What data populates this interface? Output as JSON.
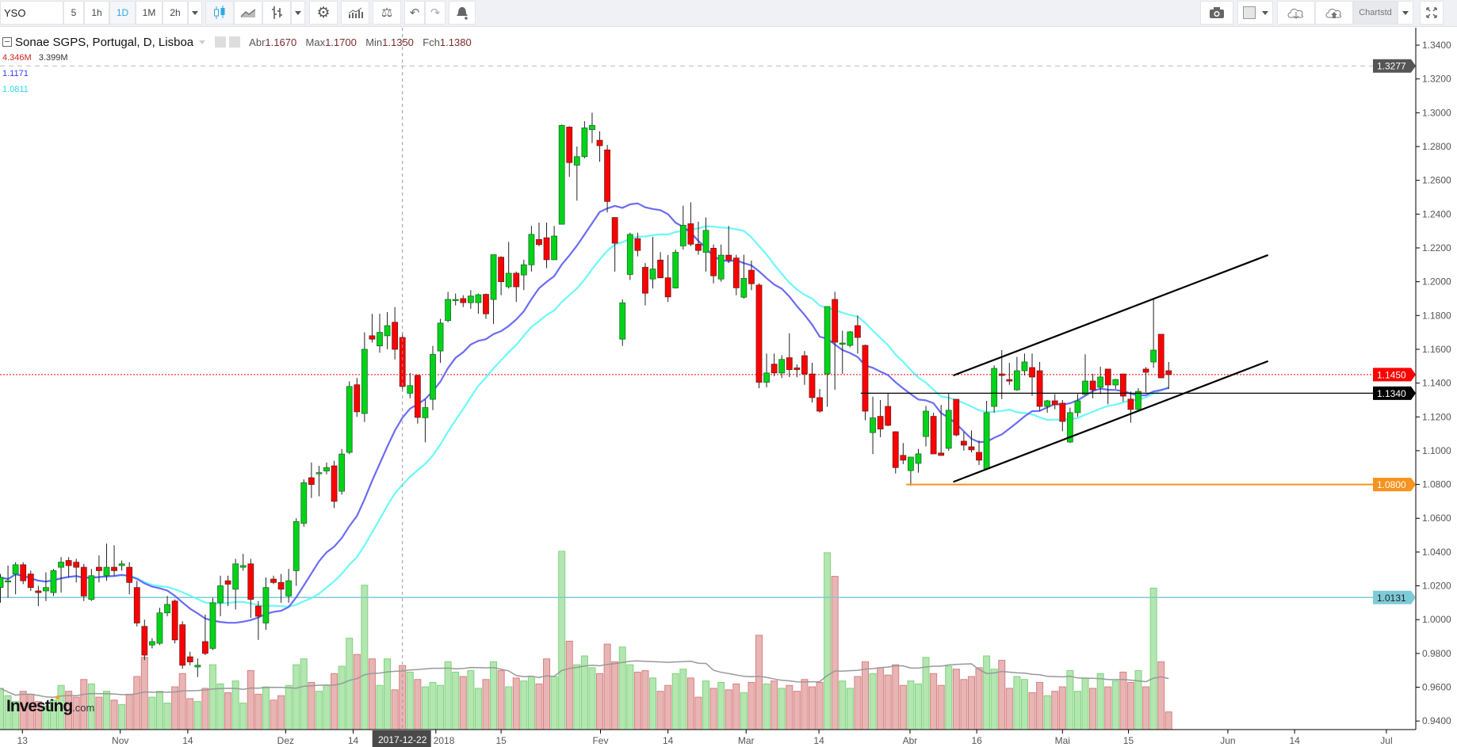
{
  "toolbar": {
    "symbol": "YSO",
    "intervals": [
      "5",
      "1h",
      "1D",
      "1M",
      "2h"
    ],
    "active_interval": "1D",
    "template_label": "Chartstd",
    "icons": [
      "candlestick-icon",
      "line-chart-icon",
      "bar-chart-icon",
      "gear-icon",
      "indicators-icon",
      "compare-scale-icon",
      "undo-icon",
      "redo-icon",
      "alert-icon",
      "camera-icon",
      "color-square-icon",
      "cloud-download-icon",
      "cloud-upload-icon",
      "fullscreen-icon"
    ]
  },
  "legend": {
    "title": "Sonae SGPS, Portugal, D, Lisboa",
    "open_label": "Abr",
    "open": "1.1670",
    "high_label": "Max",
    "high": "1.1700",
    "low_label": "Min",
    "low": "1.1350",
    "close_label": "Fch",
    "close": "1.1380",
    "volume": "4.346M",
    "volume_ma": "3.399M",
    "ma_fast": "1.1171",
    "ma_slow": "1.0811"
  },
  "crosshair": {
    "date_label": "2017-12-22",
    "bar": 53
  },
  "watermark": {
    "brand": "Investing",
    "suffix": ".com"
  },
  "colors": {
    "up": "#00d41a",
    "down": "#ff0000",
    "ma_fast": "#5b5bf5",
    "ma_slow": "#5cf7f7",
    "vol_up": "#b3e6b1",
    "vol_down": "#e8b5b5",
    "orange": "#f7931e",
    "cyan_line": "#7ecbd8"
  },
  "chart_data": {
    "type": "candlestick",
    "title": "Sonae SGPS, Portugal, D, Lisboa",
    "ylim": [
      0.93,
      1.355
    ],
    "y_ticks": [
      "1.3400",
      "1.3200",
      "1.3000",
      "1.2800",
      "1.2600",
      "1.2400",
      "1.2200",
      "1.2000",
      "1.1800",
      "1.1600",
      "1.1400",
      "1.1200",
      "1.1000",
      "1.0800",
      "1.0600",
      "1.0400",
      "1.0200",
      "1.0000",
      "0.9800",
      "0.9600",
      "0.9400"
    ],
    "x_ticks": [
      {
        "label": "13",
        "bar": 2.9
      },
      {
        "label": "Nov",
        "bar": 15.8
      },
      {
        "label": "14",
        "bar": 24.7
      },
      {
        "label": "Dez",
        "bar": 37.6
      },
      {
        "label": "14",
        "bar": 46.5
      },
      {
        "label": "2018",
        "bar": 57.4
      },
      {
        "label": "15",
        "bar": 66
      },
      {
        "label": "Fev",
        "bar": 79.1
      },
      {
        "label": "14",
        "bar": 88
      },
      {
        "label": "Mar",
        "bar": 98.3
      },
      {
        "label": "14",
        "bar": 107.9
      },
      {
        "label": "Abr",
        "bar": 119.9
      },
      {
        "label": "16",
        "bar": 128.7
      },
      {
        "label": "Mai",
        "bar": 140
      },
      {
        "label": "15",
        "bar": 148.7
      },
      {
        "label": "Jun",
        "bar": 161.8
      },
      {
        "label": "14",
        "bar": 170.6
      },
      {
        "label": "Jul",
        "bar": 182.7
      }
    ],
    "bars_ohlcv_millions": [
      [
        1.019,
        1.027,
        1.01,
        1.025,
        2.8
      ],
      [
        1.023,
        1.032,
        1.013,
        1.023,
        2.3
      ],
      [
        1.027,
        1.034,
        1.015,
        1.0325,
        1.9
      ],
      [
        1.0325,
        1.034,
        1.021,
        1.023,
        2.6
      ],
      [
        1.027,
        1.029,
        1.017,
        1.019,
        2.4
      ],
      [
        1.017,
        1.02,
        1.008,
        1.016,
        1.9
      ],
      [
        1.017,
        1.028,
        1.011,
        1.019,
        1.6
      ],
      [
        1.016,
        1.03,
        1.014,
        1.029,
        2.0
      ],
      [
        1.031,
        1.037,
        1.016,
        1.034,
        3.0
      ],
      [
        1.035,
        1.037,
        1.025,
        1.032,
        2.6
      ],
      [
        1.034,
        1.036,
        1.022,
        1.031,
        2.2
      ],
      [
        1.031,
        1.033,
        1.011,
        1.014,
        3.4
      ],
      [
        1.012,
        1.03,
        1.011,
        1.026,
        3.1
      ],
      [
        1.031,
        1.038,
        1.022,
        1.029,
        2.2
      ],
      [
        1.026,
        1.045,
        1.023,
        1.031,
        2.6
      ],
      [
        1.031,
        1.044,
        1.026,
        1.029,
        2.0
      ],
      [
        1.032,
        1.035,
        1.029,
        1.033,
        1.7
      ],
      [
        1.031,
        1.034,
        1.015,
        1.022,
        2.4
      ],
      [
        1.019,
        1.023,
        0.996,
        0.998,
        3.6
      ],
      [
        0.996,
        1.0,
        0.976,
        0.979,
        4.9
      ],
      [
        0.985,
        0.989,
        0.983,
        0.987,
        2.2
      ],
      [
        0.986,
        1.007,
        0.985,
        1.004,
        2.6
      ],
      [
        1.004,
        1.014,
        1.002,
        1.009,
        1.8
      ],
      [
        1.011,
        1.012,
        0.986,
        0.988,
        2.9
      ],
      [
        0.997,
        0.999,
        0.971,
        0.973,
        3.8
      ],
      [
        0.978,
        0.981,
        0.973,
        0.975,
        2.1
      ],
      [
        0.972,
        0.977,
        0.966,
        0.973,
        1.9
      ],
      [
        0.987,
        1.003,
        0.979,
        0.98,
        2.8
      ],
      [
        0.983,
        1.013,
        0.982,
        1.01,
        4.4
      ],
      [
        1.01,
        1.026,
        1.002,
        1.02,
        3.1
      ],
      [
        1.023,
        1.026,
        1.008,
        1.021,
        2.5
      ],
      [
        1.018,
        1.036,
        1.006,
        1.033,
        3.3
      ],
      [
        1.031,
        1.039,
        1.029,
        1.032,
        1.8
      ],
      [
        1.033,
        1.036,
        1.001,
        1.012,
        4.0
      ],
      [
        1.008,
        1.011,
        0.988,
        1.002,
        2.4
      ],
      [
        0.998,
        1.025,
        0.994,
        1.019,
        2.9
      ],
      [
        1.024,
        1.026,
        1.021,
        1.022,
        2.0
      ],
      [
        1.022,
        1.027,
        1.01,
        1.018,
        2.3
      ],
      [
        1.014,
        1.03,
        1.01,
        1.023,
        3.0
      ],
      [
        1.029,
        1.06,
        1.02,
        1.058,
        4.4
      ],
      [
        1.057,
        1.083,
        1.055,
        1.081,
        4.8
      ],
      [
        1.084,
        1.093,
        1.072,
        1.08,
        3.2
      ],
      [
        1.087,
        1.091,
        1.073,
        1.087,
        2.6
      ],
      [
        1.088,
        1.093,
        1.086,
        1.09,
        3.0
      ],
      [
        1.091,
        1.094,
        1.066,
        1.07,
        3.8
      ],
      [
        1.076,
        1.101,
        1.074,
        1.098,
        4.3
      ],
      [
        1.099,
        1.141,
        1.098,
        1.138,
        6.2
      ],
      [
        1.139,
        1.143,
        1.12,
        1.123,
        5.1
      ],
      [
        1.122,
        1.17,
        1.117,
        1.16,
        9.8
      ],
      [
        1.168,
        1.181,
        1.164,
        1.166,
        4.8
      ],
      [
        1.162,
        1.181,
        1.158,
        1.17,
        3.0
      ],
      [
        1.168,
        1.182,
        1.16,
        1.174,
        4.8
      ],
      [
        1.176,
        1.185,
        1.154,
        1.16,
        2.7
      ],
      [
        1.167,
        1.17,
        1.135,
        1.138,
        4.346
      ],
      [
        1.134,
        1.146,
        1.131,
        1.1385,
        3.9
      ],
      [
        1.1445,
        1.145,
        1.116,
        1.1197,
        3.4
      ],
      [
        1.1195,
        1.1305,
        1.105,
        1.1255,
        2.9
      ],
      [
        1.1304,
        1.162,
        1.124,
        1.157,
        3.2
      ],
      [
        1.159,
        1.178,
        1.152,
        1.1755,
        3.0
      ],
      [
        1.177,
        1.194,
        1.176,
        1.1895,
        4.6
      ],
      [
        1.1895,
        1.193,
        1.186,
        1.1895,
        3.9
      ],
      [
        1.19,
        1.192,
        1.185,
        1.1876,
        3.6
      ],
      [
        1.1876,
        1.195,
        1.184,
        1.1915,
        4.0
      ],
      [
        1.1876,
        1.193,
        1.181,
        1.1923,
        2.8
      ],
      [
        1.1925,
        1.193,
        1.178,
        1.181,
        3.4
      ],
      [
        1.1895,
        1.216,
        1.175,
        1.216,
        4.6
      ],
      [
        1.2145,
        1.215,
        1.192,
        1.2,
        4.0
      ],
      [
        1.197,
        1.2235,
        1.196,
        1.205,
        2.9
      ],
      [
        1.205,
        1.206,
        1.188,
        1.197,
        3.5
      ],
      [
        1.204,
        1.213,
        1.195,
        1.21,
        3.3
      ],
      [
        1.21,
        1.233,
        1.206,
        1.228,
        3.6
      ],
      [
        1.225,
        1.235,
        1.221,
        1.222,
        3.1
      ],
      [
        1.226,
        1.235,
        1.208,
        1.213,
        4.8
      ],
      [
        1.213,
        1.233,
        1.213,
        1.227,
        3.6
      ],
      [
        1.234,
        1.293,
        1.234,
        1.2925,
        12.1
      ],
      [
        1.2915,
        1.292,
        1.262,
        1.2705,
        6.0
      ],
      [
        1.269,
        1.28,
        1.248,
        1.274,
        4.4
      ],
      [
        1.274,
        1.295,
        1.273,
        1.291,
        5.0
      ],
      [
        1.29,
        1.3,
        1.282,
        1.2925,
        4.2
      ],
      [
        1.2837,
        1.289,
        1.271,
        1.2805,
        3.8
      ],
      [
        1.278,
        1.281,
        1.241,
        1.2475,
        5.8
      ],
      [
        1.238,
        1.238,
        1.206,
        1.2228,
        4.6
      ],
      [
        1.166,
        1.1895,
        1.162,
        1.1875,
        5.6
      ],
      [
        1.2043,
        1.229,
        1.201,
        1.228,
        4.4
      ],
      [
        1.2255,
        1.229,
        1.215,
        1.2185,
        3.9
      ],
      [
        1.2085,
        1.211,
        1.186,
        1.1932,
        4.0
      ],
      [
        1.2016,
        1.2265,
        1.196,
        1.2075,
        3.5
      ],
      [
        1.2128,
        1.2175,
        1.205,
        1.2023,
        2.6
      ],
      [
        1.2023,
        1.2158,
        1.188,
        1.191,
        3.0
      ],
      [
        1.1963,
        1.219,
        1.196,
        1.2174,
        3.8
      ],
      [
        1.2212,
        1.245,
        1.219,
        1.2334,
        4.1
      ],
      [
        1.2343,
        1.247,
        1.221,
        1.2222,
        3.5
      ],
      [
        1.2222,
        1.2355,
        1.216,
        1.2185,
        2.2
      ],
      [
        1.2174,
        1.238,
        1.206,
        1.2304,
        3.3
      ],
      [
        1.2198,
        1.222,
        1.199,
        1.2035,
        2.8
      ],
      [
        1.2016,
        1.222,
        1.2,
        1.2157,
        3.2
      ],
      [
        1.2157,
        1.233,
        1.211,
        1.2128,
        2.7
      ],
      [
        1.214,
        1.216,
        1.192,
        1.1964,
        3.1
      ],
      [
        1.1908,
        1.216,
        1.19,
        1.202,
        2.5
      ],
      [
        1.2068,
        1.2125,
        1.195,
        1.1988,
        3.2
      ],
      [
        1.198,
        1.199,
        1.137,
        1.1405,
        6.4
      ],
      [
        1.1405,
        1.1575,
        1.1375,
        1.146,
        3.1
      ],
      [
        1.1512,
        1.1575,
        1.144,
        1.146,
        3.3
      ],
      [
        1.146,
        1.1565,
        1.143,
        1.154,
        2.8
      ],
      [
        1.155,
        1.1695,
        1.1435,
        1.148,
        3.0
      ],
      [
        1.149,
        1.151,
        1.1435,
        1.148,
        2.6
      ],
      [
        1.1562,
        1.159,
        1.139,
        1.1454,
        3.4
      ],
      [
        1.1454,
        1.152,
        1.1285,
        1.1314,
        2.9
      ],
      [
        1.1314,
        1.1365,
        1.1225,
        1.1234,
        3.2
      ],
      [
        1.1454,
        1.1853,
        1.126,
        1.1853,
        12.0
      ],
      [
        1.1895,
        1.194,
        1.136,
        1.1642,
        10.4
      ],
      [
        1.1637,
        1.171,
        1.1455,
        1.1637,
        3.3
      ],
      [
        1.1623,
        1.1708,
        1.1612,
        1.1703,
        2.8
      ],
      [
        1.174,
        1.18,
        1.1575,
        1.167,
        3.6
      ],
      [
        1.1623,
        1.1628,
        1.118,
        1.1234,
        4.6
      ],
      [
        1.1107,
        1.132,
        1.098,
        1.1194,
        3.8
      ],
      [
        1.1203,
        1.13,
        1.108,
        1.1128,
        4.2
      ],
      [
        1.1262,
        1.1337,
        1.1145,
        1.115,
        3.7
      ],
      [
        1.1112,
        1.1115,
        1.0865,
        1.09,
        4.4
      ],
      [
        1.0972,
        1.1045,
        1.092,
        1.0944,
        3.0
      ],
      [
        1.0882,
        1.0962,
        1.0793,
        1.0962,
        3.3
      ],
      [
        1.0925,
        1.101,
        1.087,
        1.0981,
        3.1
      ],
      [
        1.1084,
        1.1265,
        1.1025,
        1.1234,
        4.9
      ],
      [
        1.1203,
        1.1224,
        1.0983,
        1.0981,
        3.8
      ],
      [
        1.0986,
        1.127,
        1.097,
        1.0972,
        3.0
      ],
      [
        1.1014,
        1.1337,
        1.1,
        1.1239,
        4.3
      ],
      [
        1.1304,
        1.1305,
        1.1085,
        1.1093,
        4.1
      ],
      [
        1.1056,
        1.111,
        1.1,
        1.1033,
        3.4
      ],
      [
        1.1023,
        1.112,
        1.099,
        1.1005,
        3.6
      ],
      [
        1.099,
        1.106,
        1.0915,
        1.0944,
        4.2
      ],
      [
        1.0892,
        1.1295,
        1.0885,
        1.1225,
        5.0
      ],
      [
        1.1262,
        1.1505,
        1.1225,
        1.1487,
        4.1
      ],
      [
        1.1454,
        1.1595,
        1.1305,
        1.1445,
        4.7
      ],
      [
        1.1421,
        1.152,
        1.139,
        1.1412,
        2.8
      ],
      [
        1.136,
        1.1555,
        1.1355,
        1.1473,
        3.6
      ],
      [
        1.1473,
        1.1575,
        1.1445,
        1.1525,
        3.4
      ],
      [
        1.1492,
        1.1575,
        1.1325,
        1.1436,
        2.5
      ],
      [
        1.1473,
        1.1525,
        1.1235,
        1.1262,
        3.2
      ],
      [
        1.1262,
        1.13,
        1.1225,
        1.1295,
        2.3
      ],
      [
        1.1295,
        1.1335,
        1.1245,
        1.1272,
        2.6
      ],
      [
        1.1281,
        1.13,
        1.1115,
        1.1173,
        2.9
      ],
      [
        1.1051,
        1.1255,
        1.1045,
        1.1225,
        4.0
      ],
      [
        1.1225,
        1.1335,
        1.12,
        1.1295,
        2.6
      ],
      [
        1.1333,
        1.157,
        1.133,
        1.1412,
        3.5
      ],
      [
        1.1412,
        1.1455,
        1.131,
        1.136,
        2.8
      ],
      [
        1.1375,
        1.1497,
        1.1335,
        1.1436,
        3.8
      ],
      [
        1.1483,
        1.1483,
        1.1275,
        1.1389,
        2.9
      ],
      [
        1.1389,
        1.1425,
        1.1365,
        1.1421,
        3.3
      ],
      [
        1.1454,
        1.1455,
        1.129,
        1.1323,
        3.9
      ],
      [
        1.1305,
        1.135,
        1.1165,
        1.1244,
        3.2
      ],
      [
        1.1244,
        1.137,
        1.1235,
        1.1351,
        4.0
      ],
      [
        1.1483,
        1.1495,
        1.1345,
        1.1464,
        2.9
      ],
      [
        1.1525,
        1.1904,
        1.149,
        1.1595,
        9.6
      ],
      [
        1.1689,
        1.1689,
        1.143,
        1.1431,
        4.6
      ],
      [
        1.1473,
        1.1525,
        1.1365,
        1.145,
        1.2
      ]
    ],
    "price_labels": [
      {
        "value": "1.3277",
        "price": 1.3277,
        "bg": "#555555",
        "fg": "#ffffff",
        "line": "dashed-gray"
      },
      {
        "value": "1.1450",
        "price": 1.145,
        "bg": "#ff0000",
        "fg": "#ffffff",
        "line": "dotted-red"
      },
      {
        "value": "1.1340",
        "price": 1.134,
        "bg": "#000000",
        "fg": "#ffffff",
        "line": "solid-black"
      },
      {
        "value": "1.0800",
        "price": 1.08,
        "bg": "#f7931e",
        "fg": "#ffffff",
        "line": "solid-orange"
      },
      {
        "value": "1.0131",
        "price": 1.0131,
        "bg": "#7ecbd8",
        "fg": "#222222",
        "line": "solid-cyan"
      }
    ],
    "drawings": [
      {
        "type": "trendline",
        "name": "channel-upper",
        "from": {
          "bar": 125.6,
          "price": 1.1445
        },
        "to": {
          "bar": 167.1,
          "price": 1.2158
        }
      },
      {
        "type": "trendline",
        "name": "channel-lower",
        "from": {
          "bar": 125.6,
          "price": 1.0815
        },
        "to": {
          "bar": 167.1,
          "price": 1.153
        }
      },
      {
        "type": "hline",
        "name": "support-1.0800",
        "from_bar": 119.4,
        "price": 1.08
      },
      {
        "type": "hline",
        "name": "level-1.1340",
        "from_bar": 113.4,
        "price": 1.134
      }
    ]
  }
}
